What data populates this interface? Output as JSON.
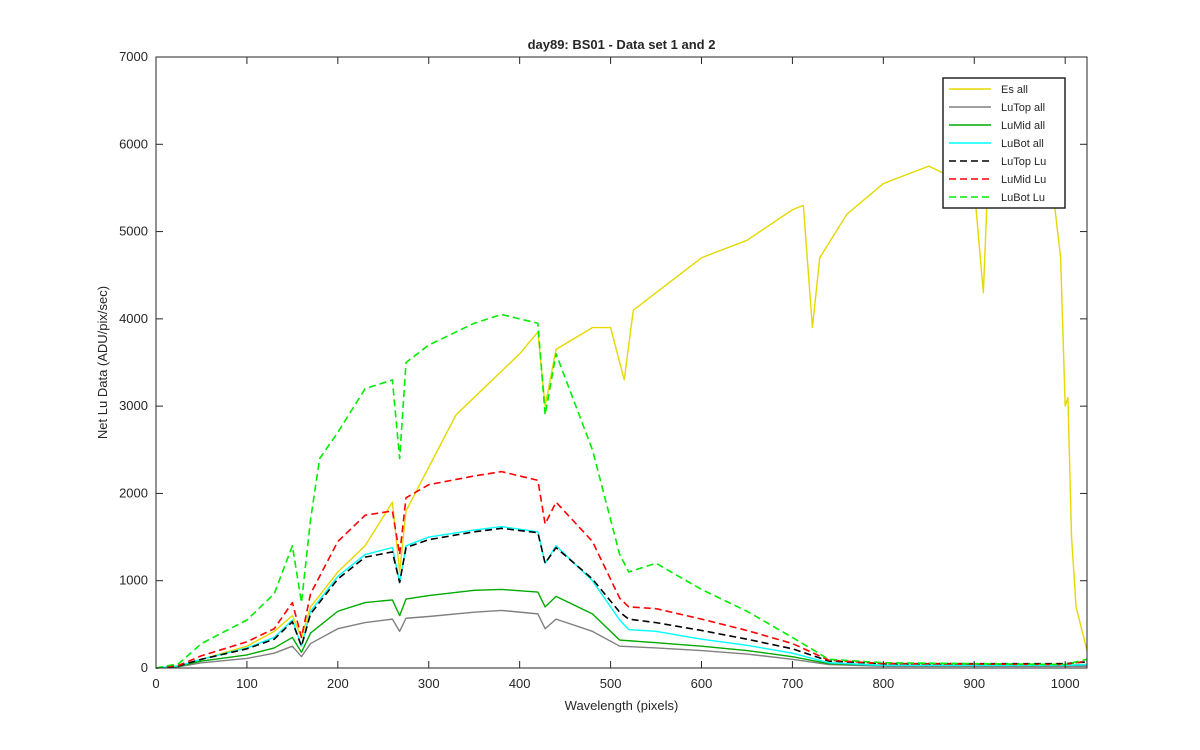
{
  "chart_data": {
    "type": "line",
    "title": "day89: BS01 - Data set 1 and 2",
    "xlabel": "Wavelength (pixels)",
    "ylabel": "Net Lu Data (ADU/pix/sec)",
    "xlim": [
      0,
      1024
    ],
    "ylim": [
      0,
      7000
    ],
    "xticks": [
      0,
      100,
      200,
      300,
      400,
      500,
      600,
      700,
      800,
      900,
      1000
    ],
    "yticks": [
      0,
      1000,
      2000,
      3000,
      4000,
      5000,
      6000,
      7000
    ],
    "grid": false,
    "legend_position": "top-right",
    "series": [
      {
        "name": "Es  all",
        "color": "#e6d800",
        "dash": "solid",
        "x": [
          0,
          25,
          50,
          100,
          130,
          150,
          160,
          170,
          200,
          230,
          260,
          268,
          275,
          300,
          330,
          360,
          400,
          420,
          428,
          440,
          480,
          500,
          515,
          525,
          550,
          600,
          650,
          700,
          712,
          722,
          730,
          760,
          800,
          850,
          880,
          900,
          910,
          915,
          950,
          985,
          995,
          1000,
          1003,
          1007,
          1012,
          1024
        ],
        "y": [
          0,
          20,
          100,
          250,
          420,
          600,
          350,
          700,
          1100,
          1400,
          1900,
          1100,
          1800,
          2300,
          2900,
          3200,
          3600,
          3850,
          3000,
          3650,
          3900,
          3900,
          3300,
          4100,
          4300,
          4700,
          4900,
          5250,
          5300,
          3900,
          4700,
          5200,
          5550,
          5750,
          5600,
          5500,
          4300,
          5600,
          5750,
          5600,
          4700,
          3000,
          3100,
          1500,
          700,
          200
        ]
      },
      {
        "name": "LuTop  all",
        "color": "#808080",
        "dash": "solid",
        "x": [
          0,
          25,
          50,
          100,
          130,
          150,
          160,
          170,
          200,
          230,
          260,
          268,
          275,
          300,
          350,
          380,
          420,
          428,
          440,
          480,
          510,
          550,
          600,
          650,
          700,
          740,
          800,
          1000,
          1024
        ],
        "y": [
          0,
          15,
          60,
          110,
          170,
          250,
          130,
          280,
          450,
          520,
          560,
          420,
          570,
          590,
          640,
          660,
          620,
          450,
          560,
          420,
          250,
          230,
          200,
          160,
          100,
          40,
          20,
          20,
          20
        ]
      },
      {
        "name": "LuMid  all",
        "color": "#00aa00",
        "dash": "solid",
        "x": [
          0,
          25,
          50,
          100,
          130,
          150,
          160,
          170,
          200,
          230,
          260,
          268,
          275,
          300,
          350,
          380,
          420,
          428,
          440,
          480,
          510,
          550,
          600,
          650,
          700,
          740,
          800,
          1000,
          1024
        ],
        "y": [
          0,
          20,
          80,
          150,
          230,
          350,
          180,
          400,
          650,
          750,
          780,
          600,
          790,
          830,
          890,
          900,
          870,
          700,
          820,
          620,
          320,
          290,
          250,
          200,
          130,
          50,
          30,
          30,
          40
        ]
      },
      {
        "name": "LuBot  all",
        "color": "#00ffff",
        "dash": "solid",
        "x": [
          0,
          25,
          50,
          100,
          130,
          150,
          160,
          170,
          200,
          230,
          260,
          268,
          275,
          300,
          350,
          380,
          420,
          428,
          440,
          480,
          510,
          520,
          550,
          600,
          650,
          700,
          740,
          800,
          1000,
          1024
        ],
        "y": [
          0,
          25,
          100,
          230,
          350,
          550,
          250,
          650,
          1050,
          1300,
          1380,
          980,
          1400,
          1500,
          1580,
          1620,
          1560,
          1200,
          1400,
          1000,
          550,
          440,
          420,
          330,
          260,
          170,
          60,
          30,
          30,
          40
        ]
      },
      {
        "name": "LuTop  Lu",
        "color": "#000000",
        "dash": "dashed",
        "x": [
          0,
          25,
          50,
          100,
          130,
          150,
          160,
          170,
          200,
          230,
          260,
          268,
          275,
          300,
          350,
          380,
          420,
          428,
          440,
          480,
          510,
          520,
          550,
          600,
          650,
          700,
          740,
          800,
          1000,
          1024
        ],
        "y": [
          0,
          25,
          100,
          220,
          330,
          530,
          250,
          620,
          1020,
          1270,
          1330,
          980,
          1380,
          1470,
          1560,
          1600,
          1550,
          1200,
          1380,
          1020,
          640,
          560,
          520,
          430,
          330,
          220,
          80,
          50,
          50,
          70
        ]
      },
      {
        "name": "LuMid  Lu",
        "color": "#ff0000",
        "dash": "dashed",
        "x": [
          0,
          25,
          50,
          100,
          130,
          150,
          160,
          170,
          200,
          230,
          260,
          268,
          275,
          300,
          350,
          380,
          420,
          428,
          440,
          480,
          510,
          520,
          550,
          600,
          650,
          700,
          740,
          800,
          1000,
          1024
        ],
        "y": [
          0,
          30,
          140,
          300,
          450,
          750,
          350,
          850,
          1450,
          1750,
          1800,
          1300,
          1950,
          2100,
          2200,
          2250,
          2150,
          1650,
          1900,
          1450,
          800,
          700,
          680,
          560,
          430,
          280,
          90,
          50,
          40,
          80
        ]
      },
      {
        "name": "LuBot  Lu",
        "color": "#00ee00",
        "dash": "dashed",
        "x": [
          0,
          25,
          50,
          100,
          130,
          150,
          160,
          170,
          180,
          200,
          230,
          260,
          268,
          275,
          300,
          350,
          380,
          420,
          428,
          440,
          480,
          510,
          520,
          550,
          600,
          650,
          700,
          740,
          800,
          1000,
          1024
        ],
        "y": [
          0,
          50,
          280,
          550,
          850,
          1400,
          750,
          1700,
          2400,
          2700,
          3200,
          3300,
          2400,
          3500,
          3700,
          3950,
          4050,
          3950,
          2900,
          3600,
          2500,
          1300,
          1100,
          1200,
          900,
          650,
          350,
          100,
          60,
          40,
          100
        ]
      }
    ]
  }
}
